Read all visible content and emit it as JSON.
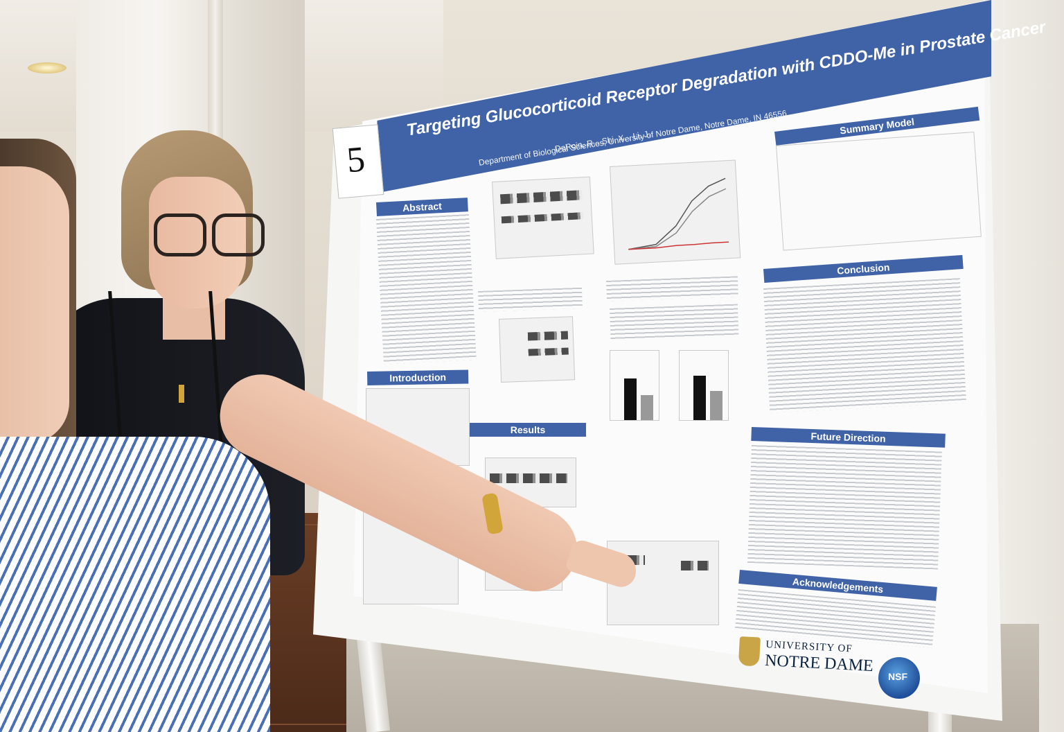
{
  "scene": {
    "description_type": "photo",
    "poster": {
      "number_card": "5",
      "title": "Targeting Glucocorticoid Receptor Degradation with CDDO-Me in Prostate Cancer",
      "authors": "DeRoin, R. , Shi, X. , Li, J.",
      "department": "Department of Biological Sciences, University of Notre Dame, Notre Dame, IN 46556",
      "sections": {
        "abstract": "Abstract",
        "introduction": "Introduction",
        "results": "Results",
        "summary_model": "Summary Model",
        "conclusion": "Conclusion",
        "future_direction": "Future Direction",
        "acknowledgements": "Acknowledgements"
      },
      "logos": {
        "notre_dame_line1": "UNIVERSITY OF",
        "notre_dame_line2": "NOTRE DAME",
        "nsf": "NSF"
      }
    },
    "colors": {
      "banner": "#3f63a6",
      "poster_bg": "#fbfbfb",
      "shirt_stripe": "#4a6fb5"
    }
  }
}
